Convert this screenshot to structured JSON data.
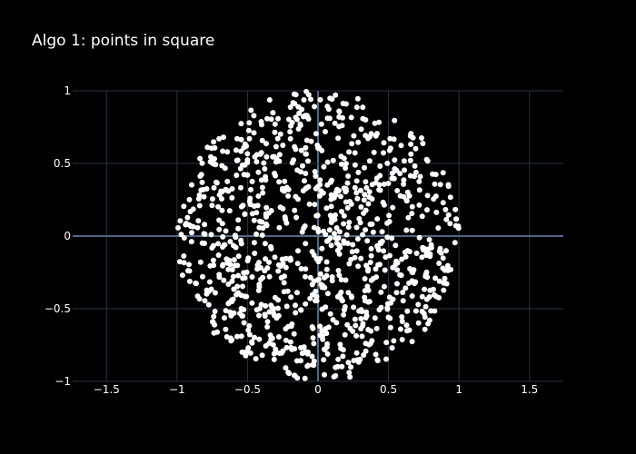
{
  "chart_data": {
    "type": "scatter",
    "title": "Algo 1: points in square",
    "xlabel": "",
    "ylabel": "",
    "xlim": [
      -1.74,
      1.74
    ],
    "ylim": [
      -1,
      1
    ],
    "x_ticks": [
      -1.5,
      -1,
      -0.5,
      0,
      0.5,
      1,
      1.5
    ],
    "x_tick_labels": [
      "−1.5",
      "−1",
      "−0.5",
      "0",
      "0.5",
      "1",
      "1.5"
    ],
    "y_ticks": [
      -1,
      -0.5,
      0,
      0.5,
      1
    ],
    "y_tick_labels": [
      "−1",
      "−0.5",
      "0",
      "0.5",
      "1"
    ],
    "grid": true,
    "point_count": 1000,
    "points_within": "unit circle",
    "colors": {
      "background": "#000000",
      "grid": "#283442",
      "marker": "#ffffff",
      "text": "#ffffff"
    }
  }
}
